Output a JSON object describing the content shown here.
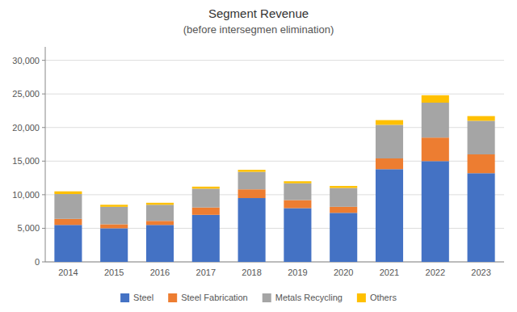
{
  "chart_data": {
    "type": "bar",
    "stacked": true,
    "title": "Segment Revenue",
    "subtitle": "(before intersegmen elimination)",
    "categories": [
      "2014",
      "2015",
      "2016",
      "2017",
      "2018",
      "2019",
      "2020",
      "2021",
      "2022",
      "2023"
    ],
    "series": [
      {
        "name": "Steel",
        "color": "#4472c4",
        "values": [
          5500,
          5000,
          5500,
          7000,
          9500,
          8000,
          7300,
          13800,
          15000,
          13200
        ]
      },
      {
        "name": "Steel Fabrication",
        "color": "#ed7d31",
        "values": [
          900,
          600,
          600,
          1100,
          1300,
          1200,
          900,
          1600,
          3500,
          2800
        ]
      },
      {
        "name": "Metals Recycling",
        "color": "#a5a5a5",
        "values": [
          3700,
          2600,
          2400,
          2800,
          2600,
          2500,
          2800,
          5000,
          5200,
          5000
        ]
      },
      {
        "name": "Others",
        "color": "#ffc000",
        "values": [
          400,
          300,
          300,
          300,
          300,
          300,
          300,
          700,
          1100,
          700
        ]
      }
    ],
    "ylim": [
      0,
      32000
    ],
    "yticks": [
      0,
      {
        "value": 5000,
        "label": "5,000"
      },
      {
        "value": 10000,
        "label": "10,000"
      },
      {
        "value": 15000,
        "label": "15,000"
      },
      {
        "value": 20000,
        "label": "20,000"
      },
      {
        "value": 25000,
        "label": "25,000"
      },
      {
        "value": 30000,
        "label": "30,000"
      }
    ],
    "grid": true,
    "legend": "bottom"
  }
}
